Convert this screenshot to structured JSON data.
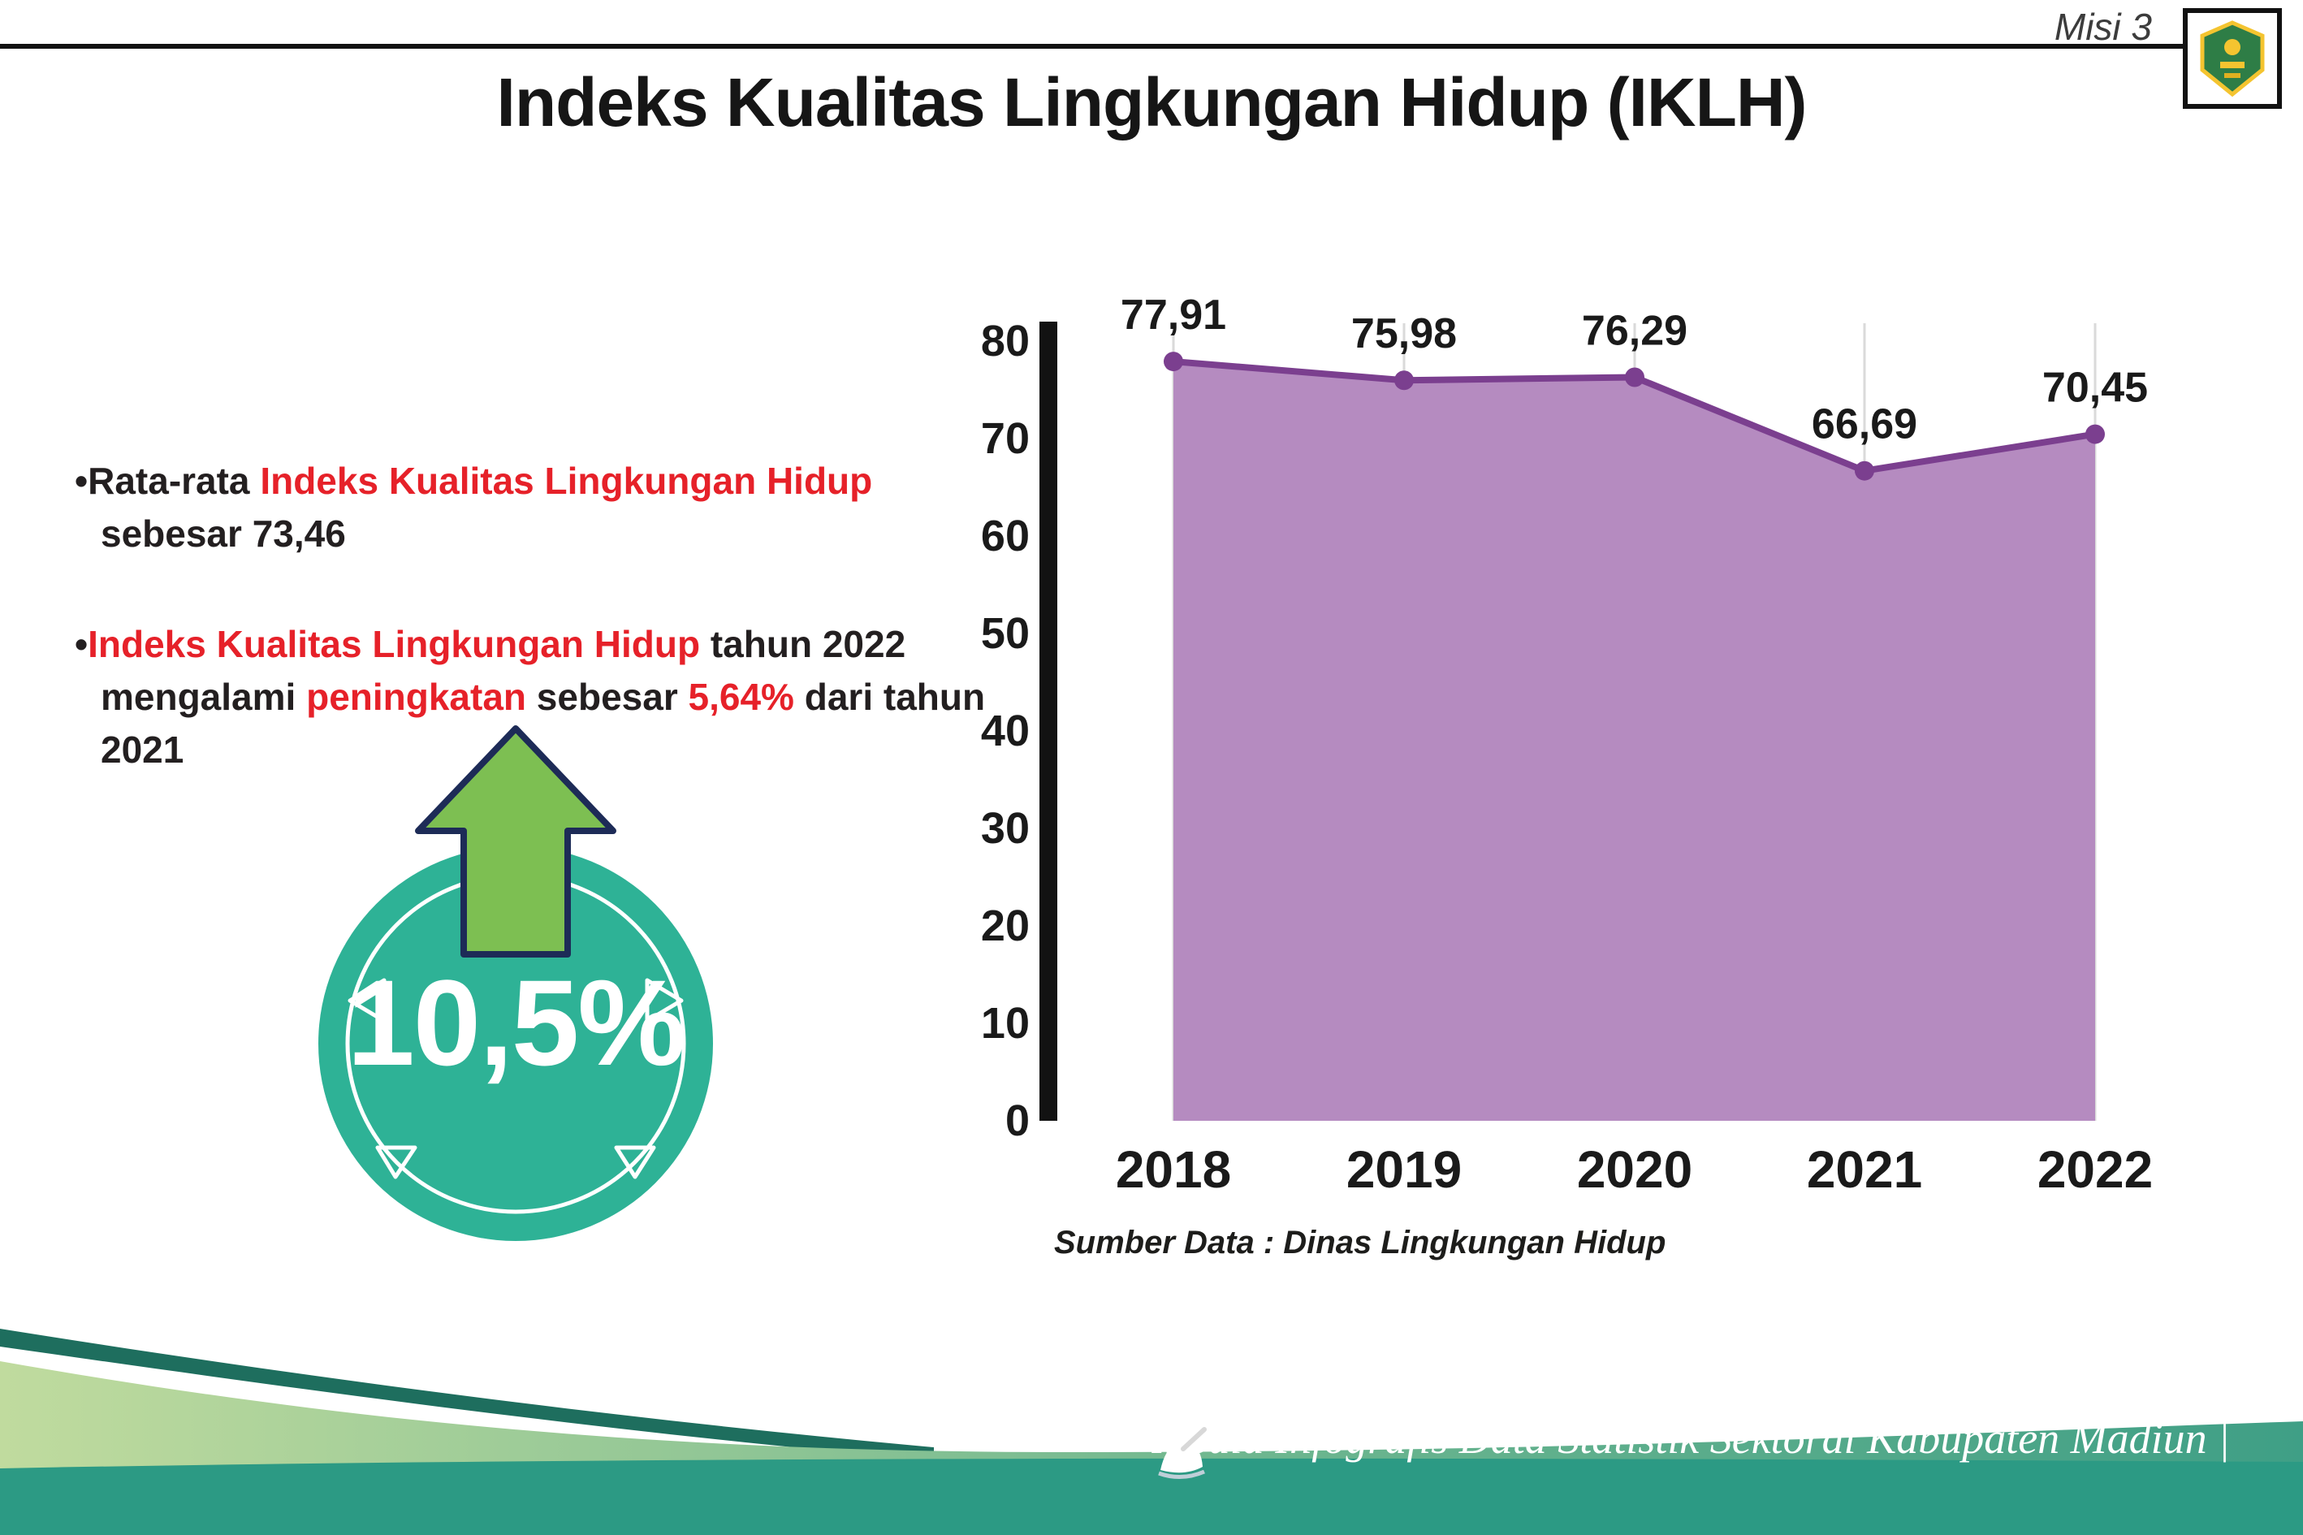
{
  "header": {
    "misi": "Misi 3",
    "title": "Indeks Kualitas Lingkungan Hidup (IKLH)"
  },
  "bullets": {
    "b1": {
      "p1": "Rata-rata ",
      "p2": "Indeks Kualitas Lingkungan Hidup",
      "p3": " sebesar 73,46"
    },
    "b2": {
      "p1": "Indeks Kualitas Lingkungan Hidup",
      "p2": " tahun 2022 mengalami ",
      "p3": "peningkatan",
      "p4": " sebesar ",
      "p5": "5,64%",
      "p6": " dari tahun 2021"
    }
  },
  "badge": {
    "value": "10,5%"
  },
  "chart_data": {
    "type": "area",
    "title": "Indeks Kualitas Lingkungan Hidup (IKLH)",
    "categories": [
      "2018",
      "2019",
      "2020",
      "2021",
      "2022"
    ],
    "values": [
      77.91,
      75.98,
      76.29,
      66.69,
      70.45
    ],
    "labels": [
      "77,91",
      "75,98",
      "76,29",
      "66,69",
      "70,45"
    ],
    "xlabel": "",
    "ylabel": "",
    "ylim": [
      0,
      80
    ],
    "yticks": [
      0,
      10,
      20,
      30,
      40,
      50,
      60,
      70,
      80
    ],
    "grid": "vertical",
    "legend": "none",
    "source": "Sumber Data : Dinas Lingkungan Hidup"
  },
  "footer": {
    "text": "Media Infografis Data Statistik Sektoral Kabupaten Madiun |"
  },
  "colors": {
    "accent_red": "#e62129",
    "area_fill": "#b58bc0",
    "area_line": "#7b3f8f",
    "badge_teal": "#2eb296",
    "arrow_green": "#7dbf52",
    "arrow_outline": "#1d2b57",
    "footer_teal": "#2c9a84",
    "axis_black": "#121212"
  }
}
